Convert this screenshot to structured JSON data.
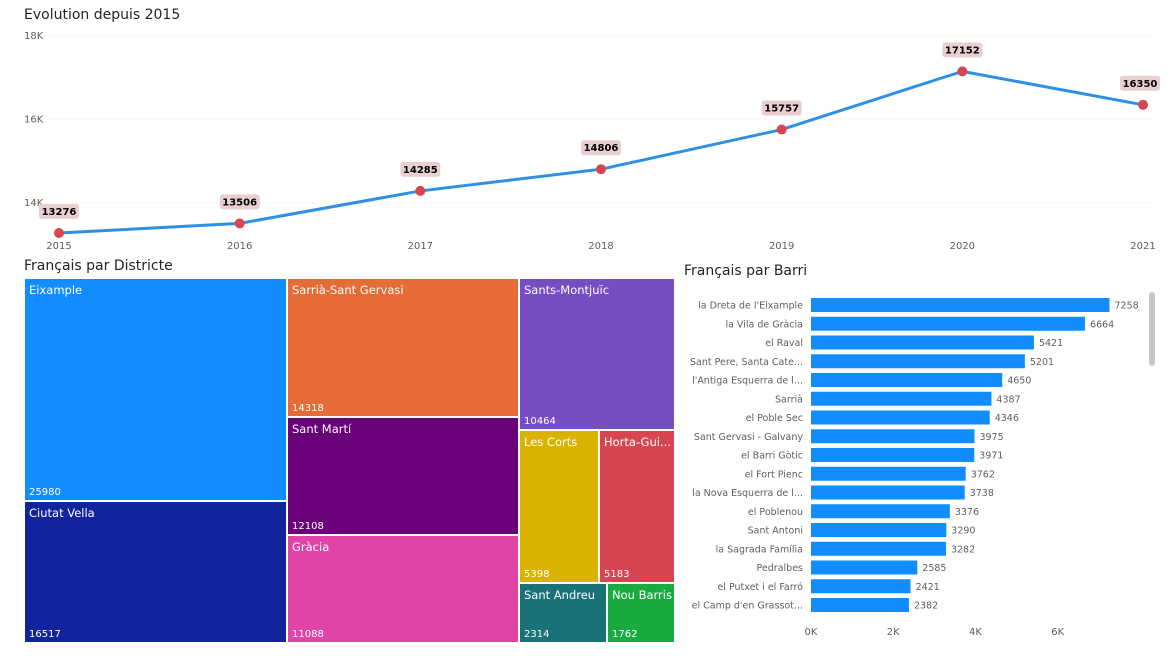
{
  "line_chart": {
    "title": "Evolution depuis 2015",
    "y_ticks": [
      "18K",
      "16K",
      "14K"
    ],
    "accent_color": "#2F8FE4",
    "marker_color": "#D64550",
    "label_bg_color": "#E9CFD1"
  },
  "treemap": {
    "title": "Français par Districte",
    "cells": [
      {
        "name": "Eixample",
        "value": "25980",
        "color": "#118DFF"
      },
      {
        "name": "Ciutat Vella",
        "value": "16517",
        "color": "#12239E"
      },
      {
        "name": "Sarrià-Sant Gervasi",
        "value": "14318",
        "color": "#E66C37"
      },
      {
        "name": "Sant Martí",
        "value": "12108",
        "color": "#6B007B"
      },
      {
        "name": "Gràcia",
        "value": "11088",
        "color": "#E044A7"
      },
      {
        "name": "Sants-Montjuïc",
        "value": "10464",
        "color": "#744EC2"
      },
      {
        "name": "Les Corts",
        "value": "5398",
        "color": "#D9B300"
      },
      {
        "name": "Horta-Gui...",
        "value": "5183",
        "color": "#D64550"
      },
      {
        "name": "Sant Andreu",
        "value": "2314",
        "color": "#197278"
      },
      {
        "name": "Nou Barris",
        "value": "1762",
        "color": "#1AAB40"
      }
    ]
  },
  "bar_chart": {
    "title": "Français par Barri",
    "x_ticks": [
      "0K",
      "2K",
      "4K",
      "6K"
    ],
    "bar_color": "#118DFF"
  },
  "chart_data": [
    {
      "type": "line",
      "title": "Evolution depuis 2015",
      "x": [
        "2015",
        "2016",
        "2017",
        "2018",
        "2019",
        "2020",
        "2021"
      ],
      "values": [
        13276,
        13506,
        14285,
        14806,
        15757,
        17152,
        16350
      ],
      "ylim": [
        13300,
        18000
      ],
      "y_ticks": [
        18000,
        16000,
        14000
      ],
      "grid": true
    },
    {
      "type": "bar",
      "orientation": "horizontal",
      "title": "Français par Barri",
      "categories": [
        "la Dreta de l'Eixample",
        "la Vila de Gràcia",
        "el Raval",
        "Sant Pere, Santa Cate...",
        "l'Antiga Esquerra de l...",
        "Sarrià",
        "el Poble Sec",
        "Sant Gervasi - Galvany",
        "el Barri Gòtic",
        "el Fort Pienc",
        "la Nova Esquerra de l...",
        "el Poblenou",
        "Sant Antoni",
        "la Sagrada Família",
        "Pedralbes",
        "el Putxet i el Farró",
        "el Camp d'en Grassot..."
      ],
      "values": [
        7258,
        6664,
        5421,
        5201,
        4650,
        4387,
        4346,
        3975,
        3971,
        3762,
        3738,
        3376,
        3290,
        3282,
        2585,
        2421,
        2382
      ],
      "xlim": [
        0,
        8000
      ],
      "x_ticks": [
        0,
        2000,
        4000,
        6000
      ]
    }
  ]
}
